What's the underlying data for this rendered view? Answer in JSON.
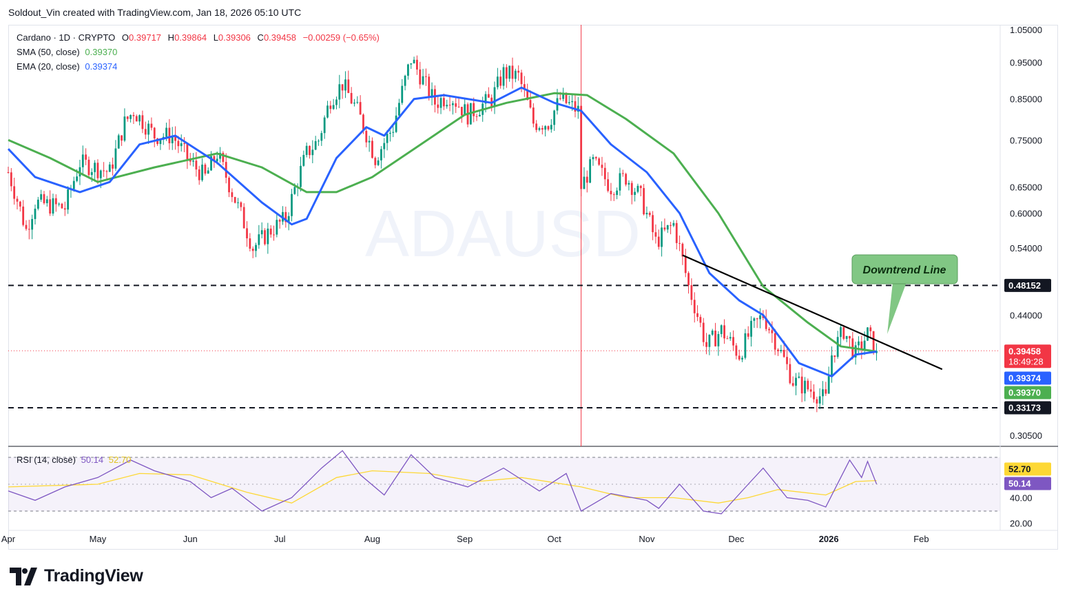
{
  "header": {
    "text": "Soldout_Vin created with TradingView.com, Jan 18, 2026 05:10 UTC"
  },
  "legend": {
    "symbol": "Cardano · 1D · CRYPTO",
    "o_label": "O",
    "o": "0.39717",
    "h_label": "H",
    "h": "0.39864",
    "l_label": "L",
    "l": "0.39306",
    "c_label": "C",
    "c": "0.39458",
    "change": "−0.00259 (−0.65%)",
    "sma_label": "SMA (50, close)",
    "sma": "0.39370",
    "ema_label": "EMA (20, close)",
    "ema": "0.39374"
  },
  "rsi_legend": {
    "label": "RSI (14, close)",
    "rsi": "50.14",
    "ma": "52.70"
  },
  "watermark": "ADAUSD",
  "annotation": "Downtrend Line",
  "footer": {
    "brand": "TradingView"
  },
  "colors": {
    "up": "#089981",
    "down": "#f23645",
    "sma": "#4caf50",
    "ema": "#2962ff",
    "rsi": "#7e57c2",
    "rsi_ma": "#fdd835",
    "text": "#131722",
    "axis_text": "#131722",
    "annotation_bg": "#81c784"
  },
  "chart_data": {
    "type": "candlestick",
    "scale": "log",
    "price_ticks": [
      "1.05000",
      "0.95000",
      "0.85000",
      "0.75000",
      "0.65000",
      "0.60000",
      "0.54000",
      "0.44000",
      "0.30500"
    ],
    "x_ticks": [
      "Apr",
      "May",
      "Jun",
      "Jul",
      "Aug",
      "Sep",
      "Oct",
      "Nov",
      "Dec",
      "2026",
      "Feb"
    ],
    "horizontal_levels": [
      {
        "value": 0.48152,
        "label": "0.48152",
        "style": "dashed"
      },
      {
        "value": 0.33173,
        "label": "0.33173",
        "style": "dashed"
      }
    ],
    "last_price": {
      "value": 0.39458,
      "label": "0.39458",
      "countdown": "18:49:28"
    },
    "indicator_labels": [
      {
        "name": "EMA 20",
        "value": 0.39374,
        "label": "0.39374"
      },
      {
        "name": "SMA 50",
        "value": 0.3937,
        "label": "0.39370"
      }
    ],
    "downtrend_line": {
      "from": [
        "Nov 13",
        0.528
      ],
      "to": [
        "Feb 8",
        0.373
      ]
    },
    "event_line": {
      "date": "Oct 10"
    },
    "close_path": [
      [
        "Apr 1",
        0.68
      ],
      [
        "Apr 7",
        0.57
      ],
      [
        "Apr 10",
        0.62
      ],
      [
        "Apr 20",
        0.61
      ],
      [
        "Apr 25",
        0.7
      ],
      [
        "May 5",
        0.68
      ],
      [
        "May 10",
        0.79
      ],
      [
        "May 13",
        0.82
      ],
      [
        "May 20",
        0.76
      ],
      [
        "May 26",
        0.76
      ],
      [
        "Jun 1",
        0.7
      ],
      [
        "Jun 6",
        0.67
      ],
      [
        "Jun 10",
        0.72
      ],
      [
        "Jun 15",
        0.64
      ],
      [
        "Jun 22",
        0.54
      ],
      [
        "Jun 28",
        0.57
      ],
      [
        "Jul 3",
        0.59
      ],
      [
        "Jul 10",
        0.72
      ],
      [
        "Jul 14",
        0.75
      ],
      [
        "Jul 18",
        0.85
      ],
      [
        "Jul 22",
        0.89
      ],
      [
        "Jul 27",
        0.82
      ],
      [
        "Aug 2",
        0.71
      ],
      [
        "Aug 8",
        0.78
      ],
      [
        "Aug 14",
        0.96
      ],
      [
        "Aug 18",
        0.9
      ],
      [
        "Aug 22",
        0.84
      ],
      [
        "Aug 27",
        0.86
      ],
      [
        "Sep 2",
        0.81
      ],
      [
        "Sep 10",
        0.85
      ],
      [
        "Sep 14",
        0.92
      ],
      [
        "Sep 19",
        0.91
      ],
      [
        "Sep 24",
        0.79
      ],
      [
        "Sep 29",
        0.79
      ],
      [
        "Oct 3",
        0.85
      ],
      [
        "Oct 9",
        0.82
      ],
      [
        "Oct 10",
        0.65
      ],
      [
        "Oct 14",
        0.7
      ],
      [
        "Oct 20",
        0.65
      ],
      [
        "Oct 25",
        0.67
      ],
      [
        "Oct 30",
        0.63
      ],
      [
        "Nov 4",
        0.55
      ],
      [
        "Nov 10",
        0.58
      ],
      [
        "Nov 15",
        0.48
      ],
      [
        "Nov 21",
        0.4
      ],
      [
        "Nov 26",
        0.42
      ],
      [
        "Dec 2",
        0.39
      ],
      [
        "Dec 6",
        0.42
      ],
      [
        "Dec 10",
        0.44
      ],
      [
        "Dec 15",
        0.4
      ],
      [
        "Dec 20",
        0.36
      ],
      [
        "Dec 26",
        0.35
      ],
      [
        "Dec 31",
        0.34
      ],
      [
        "Jan 2",
        0.39
      ],
      [
        "Jan 6",
        0.42
      ],
      [
        "Jan 10",
        0.39
      ],
      [
        "Jan 14",
        0.415
      ],
      [
        "Jan 17",
        0.3946
      ]
    ],
    "sma50_path": [
      [
        "Apr 1",
        0.75
      ],
      [
        "Apr 15",
        0.71
      ],
      [
        "May 1",
        0.66
      ],
      [
        "May 20",
        0.69
      ],
      [
        "Jun 10",
        0.72
      ],
      [
        "Jun 25",
        0.69
      ],
      [
        "Jul 10",
        0.64
      ],
      [
        "Jul 20",
        0.64
      ],
      [
        "Aug 1",
        0.67
      ],
      [
        "Aug 15",
        0.73
      ],
      [
        "Sep 1",
        0.81
      ],
      [
        "Sep 15",
        0.84
      ],
      [
        "Oct 1",
        0.865
      ],
      [
        "Oct 12",
        0.86
      ],
      [
        "Oct 25",
        0.8
      ],
      [
        "Nov 10",
        0.72
      ],
      [
        "Nov 25",
        0.6
      ],
      [
        "Dec 10",
        0.48
      ],
      [
        "Dec 25",
        0.43
      ],
      [
        "Jan 5",
        0.4
      ],
      [
        "Jan 17",
        0.3937
      ]
    ],
    "ema20_path": [
      [
        "Apr 1",
        0.73
      ],
      [
        "Apr 10",
        0.67
      ],
      [
        "Apr 25",
        0.64
      ],
      [
        "May 5",
        0.66
      ],
      [
        "May 15",
        0.74
      ],
      [
        "May 27",
        0.76
      ],
      [
        "Jun 10",
        0.7
      ],
      [
        "Jun 25",
        0.62
      ],
      [
        "Jul 5",
        0.58
      ],
      [
        "Jul 10",
        0.59
      ],
      [
        "Jul 20",
        0.71
      ],
      [
        "Jul 30",
        0.78
      ],
      [
        "Aug 5",
        0.76
      ],
      [
        "Aug 15",
        0.85
      ],
      [
        "Aug 25",
        0.86
      ],
      [
        "Sep 10",
        0.84
      ],
      [
        "Sep 20",
        0.88
      ],
      [
        "Oct 1",
        0.84
      ],
      [
        "Oct 10",
        0.82
      ],
      [
        "Oct 20",
        0.74
      ],
      [
        "Nov 1",
        0.68
      ],
      [
        "Nov 12",
        0.6
      ],
      [
        "Nov 22",
        0.5
      ],
      [
        "Dec 2",
        0.46
      ],
      [
        "Dec 10",
        0.44
      ],
      [
        "Dec 22",
        0.38
      ],
      [
        "Jan 2",
        0.365
      ],
      [
        "Jan 10",
        0.39
      ],
      [
        "Jan 17",
        0.3937
      ]
    ],
    "rsi": {
      "ticks": [
        "52.70",
        "50.14",
        "40.00",
        "20.00"
      ],
      "bands": [
        30,
        70
      ],
      "latest": 50.14,
      "ma_latest": 52.7,
      "path": [
        [
          "Apr 1",
          45
        ],
        [
          "Apr 10",
          38
        ],
        [
          "Apr 20",
          48
        ],
        [
          "May 1",
          55
        ],
        [
          "May 12",
          68
        ],
        [
          "May 20",
          60
        ],
        [
          "Jun 1",
          52
        ],
        [
          "Jun 8",
          40
        ],
        [
          "Jun 15",
          47
        ],
        [
          "Jun 25",
          30
        ],
        [
          "Jul 5",
          40
        ],
        [
          "Jul 15",
          62
        ],
        [
          "Jul 22",
          75
        ],
        [
          "Jul 28",
          57
        ],
        [
          "Aug 5",
          42
        ],
        [
          "Aug 14",
          72
        ],
        [
          "Aug 22",
          55
        ],
        [
          "Sep 2",
          48
        ],
        [
          "Sep 14",
          62
        ],
        [
          "Sep 26",
          45
        ],
        [
          "Oct 5",
          58
        ],
        [
          "Oct 10",
          30
        ],
        [
          "Oct 20",
          43
        ],
        [
          "Nov 1",
          38
        ],
        [
          "Nov 5",
          32
        ],
        [
          "Nov 12",
          50
        ],
        [
          "Nov 20",
          30
        ],
        [
          "Nov 26",
          28
        ],
        [
          "Dec 5",
          50
        ],
        [
          "Dec 10",
          62
        ],
        [
          "Dec 18",
          40
        ],
        [
          "Dec 25",
          38
        ],
        [
          "Dec 31",
          33
        ],
        [
          "Jan 5",
          55
        ],
        [
          "Jan 8",
          68
        ],
        [
          "Jan 12",
          55
        ],
        [
          "Jan 14",
          67
        ],
        [
          "Jan 17",
          50.14
        ]
      ],
      "ma_path": [
        [
          "Apr 1",
          48
        ],
        [
          "May 1",
          50
        ],
        [
          "May 15",
          58
        ],
        [
          "Jun 1",
          57
        ],
        [
          "Jun 20",
          44
        ],
        [
          "Jul 5",
          36
        ],
        [
          "Jul 20",
          55
        ],
        [
          "Aug 1",
          60
        ],
        [
          "Aug 20",
          58
        ],
        [
          "Sep 5",
          52
        ],
        [
          "Sep 20",
          55
        ],
        [
          "Oct 10",
          48
        ],
        [
          "Oct 25",
          40
        ],
        [
          "Nov 10",
          40
        ],
        [
          "Nov 25",
          36
        ],
        [
          "Dec 5",
          40
        ],
        [
          "Dec 15",
          46
        ],
        [
          "Dec 31",
          42
        ],
        [
          "Jan 10",
          52
        ],
        [
          "Jan 17",
          52.7
        ]
      ]
    }
  }
}
